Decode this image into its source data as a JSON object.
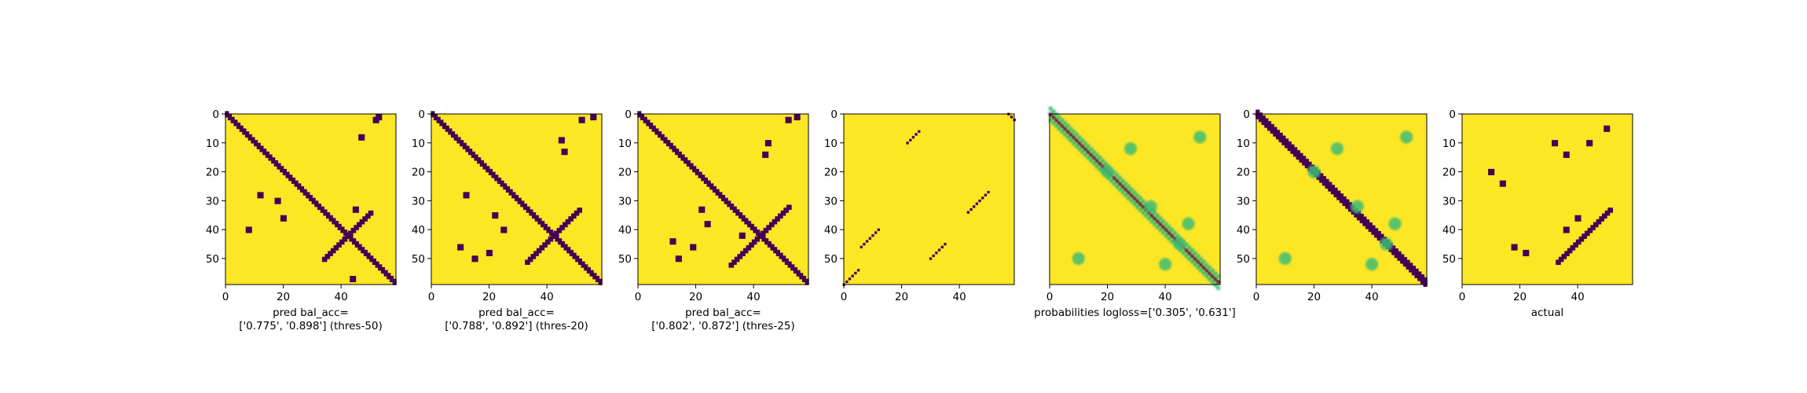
{
  "colors": {
    "low": "#440154",
    "mid": "#3fbc73",
    "high": "#fde725",
    "frame": "#000000"
  },
  "chart_data": [
    {
      "type": "heatmap",
      "panel": "pred_thres50",
      "xlim": [
        0,
        59
      ],
      "ylim": [
        0,
        59
      ],
      "xticks": [
        "0",
        "20",
        "40"
      ],
      "yticks": [
        "0",
        "10",
        "20",
        "30",
        "40",
        "50"
      ],
      "xlabel": [
        "pred bal_acc=",
        "['0.775', '0.898'] (thres-50)"
      ],
      "pattern": {
        "diag_band": 2,
        "cross_center": [
          42,
          42
        ],
        "cross_size": 8,
        "off_blobs": [
          [
            52,
            2
          ],
          [
            47,
            8
          ],
          [
            8,
            40
          ],
          [
            12,
            28
          ],
          [
            18,
            30
          ],
          [
            20,
            36
          ],
          [
            45,
            33
          ],
          [
            44,
            57
          ],
          [
            53,
            1
          ]
        ]
      }
    },
    {
      "type": "heatmap",
      "panel": "pred_thres20",
      "xlim": [
        0,
        59
      ],
      "ylim": [
        0,
        59
      ],
      "xticks": [
        "0",
        "20",
        "40"
      ],
      "yticks": [
        "0",
        "10",
        "20",
        "30",
        "40",
        "50"
      ],
      "xlabel": [
        "pred bal_acc=",
        "['0.788', '0.892'] (thres-20)"
      ],
      "pattern": {
        "diag_band": 2,
        "cross_center": [
          42,
          42
        ],
        "cross_size": 9,
        "off_blobs": [
          [
            52,
            2
          ],
          [
            56,
            1
          ],
          [
            45,
            9
          ],
          [
            46,
            13
          ],
          [
            10,
            46
          ],
          [
            15,
            50
          ],
          [
            12,
            28
          ],
          [
            22,
            35
          ],
          [
            20,
            48
          ],
          [
            25,
            40
          ]
        ]
      }
    },
    {
      "type": "heatmap",
      "panel": "pred_thres25",
      "xlim": [
        0,
        59
      ],
      "ylim": [
        0,
        59
      ],
      "xticks": [
        "0",
        "20",
        "40"
      ],
      "yticks": [
        "0",
        "10",
        "20",
        "30",
        "40",
        "50"
      ],
      "xlabel": [
        "pred bal_acc=",
        "['0.802', '0.872'] (thres-25)"
      ],
      "pattern": {
        "diag_band": 2,
        "cross_center": [
          42,
          42
        ],
        "cross_size": 10,
        "off_blobs": [
          [
            52,
            2
          ],
          [
            55,
            1
          ],
          [
            45,
            10
          ],
          [
            44,
            14
          ],
          [
            12,
            44
          ],
          [
            14,
            50
          ],
          [
            22,
            33
          ],
          [
            24,
            38
          ],
          [
            19,
            46
          ],
          [
            36,
            42
          ]
        ]
      }
    },
    {
      "type": "heatmap",
      "panel": "offset_diagonals",
      "xlim": [
        0,
        59
      ],
      "ylim": [
        0,
        59
      ],
      "xticks": [
        "0",
        "20",
        "40"
      ],
      "yticks": [
        "0",
        "10",
        "20",
        "30",
        "40",
        "50"
      ],
      "xlabel": [],
      "pattern": {
        "segments": [
          [
            [
              57,
              0
            ],
            [
              59,
              2
            ]
          ],
          [
            [
              22,
              10
            ],
            [
              26,
              6
            ]
          ],
          [
            [
              6,
              46
            ],
            [
              12,
              40
            ]
          ],
          [
            [
              43,
              34
            ],
            [
              50,
              27
            ]
          ],
          [
            [
              30,
              50
            ],
            [
              35,
              45
            ]
          ],
          [
            [
              0,
              59
            ],
            [
              5,
              54
            ]
          ]
        ]
      }
    },
    {
      "type": "heatmap",
      "panel": "probabilities",
      "xlim": [
        0,
        59
      ],
      "ylim": [
        0,
        59
      ],
      "xticks": [
        "0",
        "20",
        "40"
      ],
      "yticks": [],
      "xlabel": [
        "probabilities logloss=['0.305', '0.631']"
      ],
      "pattern": {
        "continuous": true,
        "diag_lines": 3
      }
    },
    {
      "type": "heatmap",
      "panel": "probabilities_smooth",
      "xlim": [
        0,
        59
      ],
      "ylim": [
        0,
        59
      ],
      "xticks": [
        "0",
        "20",
        "40"
      ],
      "yticks": [
        "0",
        "10",
        "20",
        "30",
        "40",
        "50"
      ],
      "xlabel": [],
      "pattern": {
        "continuous": true,
        "diag_band": 3
      }
    },
    {
      "type": "heatmap",
      "panel": "actual",
      "xlim": [
        0,
        59
      ],
      "ylim": [
        0,
        59
      ],
      "xticks": [
        "0",
        "20",
        "40"
      ],
      "yticks": [
        "0",
        "10",
        "20",
        "30",
        "40",
        "50"
      ],
      "xlabel": [
        "actual"
      ],
      "pattern": {
        "cross": true,
        "cross_center": [
          42,
          42
        ],
        "off_blobs": [
          [
            10,
            20
          ],
          [
            14,
            24
          ],
          [
            44,
            10
          ],
          [
            50,
            5
          ],
          [
            32,
            10
          ],
          [
            36,
            14
          ],
          [
            18,
            46
          ],
          [
            22,
            48
          ],
          [
            40,
            36
          ],
          [
            36,
            40
          ]
        ]
      }
    }
  ]
}
